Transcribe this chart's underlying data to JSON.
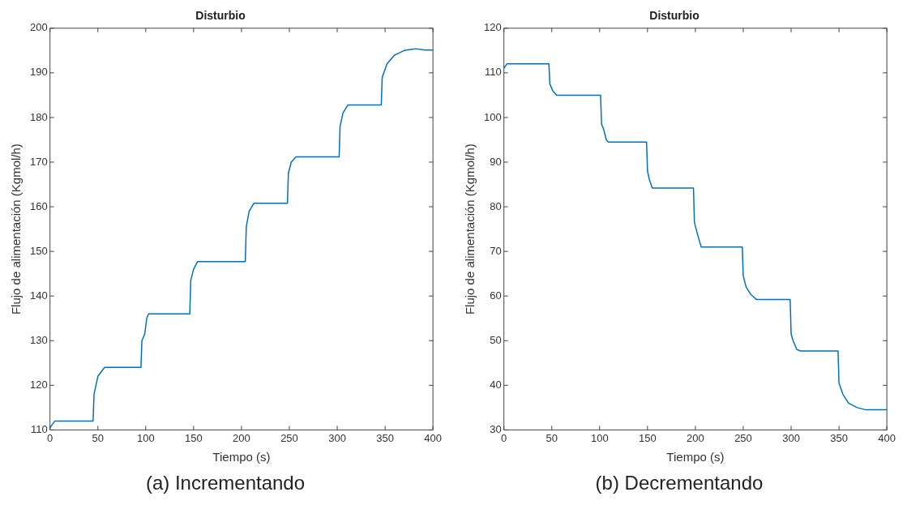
{
  "chart_data": [
    {
      "type": "line",
      "title": "Disturbio",
      "xlabel": "Tiempo (s)",
      "ylabel": "Flujo de alimentación (Kgmol/h)",
      "annotations": [
        "(a) Incrementando"
      ],
      "xlim": [
        0,
        400
      ],
      "xticks": [
        0,
        50,
        100,
        150,
        200,
        250,
        300,
        350,
        400
      ],
      "ylim": [
        110,
        200
      ],
      "yticks": [
        110,
        120,
        130,
        140,
        150,
        160,
        170,
        180,
        190,
        200
      ],
      "grid": false,
      "legend": false,
      "series": [
        {
          "color": "#0072bd",
          "x": [
            0,
            5,
            45,
            46,
            50,
            57,
            95,
            96,
            99,
            101,
            103,
            146,
            147,
            150,
            154,
            204,
            205,
            208,
            213,
            248,
            249,
            252,
            257,
            302,
            303,
            306,
            311,
            346,
            347,
            352,
            360,
            370,
            382,
            392,
            400
          ],
          "values": [
            110.5,
            112,
            112,
            118,
            122,
            124,
            124,
            130,
            131.5,
            135,
            136,
            136,
            143.5,
            146,
            147.7,
            147.7,
            155.5,
            159,
            160.8,
            160.8,
            167.5,
            170,
            171.2,
            171.2,
            178,
            181,
            182.8,
            182.8,
            189,
            192,
            194,
            195,
            195.4,
            195.1,
            195.1
          ]
        }
      ]
    },
    {
      "type": "line",
      "title": "Disturbio",
      "xlabel": "Tiempo (s)",
      "ylabel": "Flujo de alimentación (Kgmol/h)",
      "annotations": [
        "(b) Decrementando"
      ],
      "xlim": [
        0,
        400
      ],
      "xticks": [
        0,
        50,
        100,
        150,
        200,
        250,
        300,
        350,
        400
      ],
      "ylim": [
        30,
        120
      ],
      "yticks": [
        30,
        40,
        50,
        60,
        70,
        80,
        90,
        100,
        110,
        120
      ],
      "grid": false,
      "legend": false,
      "series": [
        {
          "color": "#0072bd",
          "x": [
            0,
            3,
            47,
            48,
            51,
            55,
            101,
            102,
            104,
            107,
            109,
            149,
            150,
            152,
            155,
            198,
            199,
            202,
            206,
            249,
            250,
            253,
            258,
            264,
            299,
            300,
            302,
            306,
            310,
            349,
            350,
            354,
            360,
            369,
            378,
            400
          ],
          "values": [
            111,
            112,
            112,
            107.5,
            106,
            105,
            105,
            98.5,
            97.5,
            95,
            94.5,
            94.5,
            88,
            86,
            84.2,
            84.2,
            76.5,
            74,
            71,
            71,
            64.5,
            62,
            60.3,
            59.2,
            59.2,
            51.5,
            50,
            48,
            47.7,
            47.7,
            40.5,
            38,
            36,
            35,
            34.5,
            34.5
          ]
        }
      ]
    }
  ]
}
